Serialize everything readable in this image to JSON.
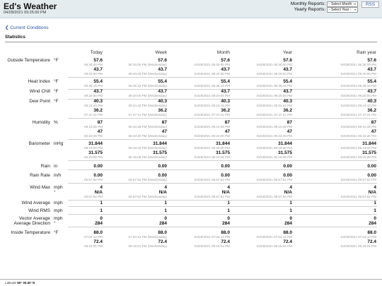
{
  "header": {
    "title": "Ed's Weather",
    "datetime": "04/28/2021 09:25:00 PM",
    "monthly_label": "Monthly Reports:",
    "monthly_select": "- Select Month -",
    "yearly_label": "Yearly Reports:",
    "yearly_select": "- Select Year -",
    "rss": "RSS"
  },
  "nav": {
    "current_conditions": "❮ Current Conditions"
  },
  "stats": {
    "heading": "Statistics",
    "columns": [
      "Today",
      "Week",
      "Month",
      "Year",
      "Rain year"
    ]
  },
  "rows": [
    {
      "label": "Outside Temperature",
      "unit": "°F",
      "lines": [
        {
          "type": "v",
          "values": [
            "57.6",
            "57.6",
            "57.6",
            "57.6",
            "57.6"
          ]
        },
        {
          "type": "t",
          "values": [
            "06:30:00 PM",
            "06:30:00 PM (Wednesday)",
            "04/28/2021 06:30:00 PM",
            "04/28/2021 06:30:00 PM",
            "04/28/2021 06:30:00 PM"
          ]
        },
        {
          "type": "v",
          "values": [
            "43.7",
            "43.7",
            "43.7",
            "43.7",
            "43.7"
          ]
        },
        {
          "type": "t",
          "values": [
            "09:20:00 PM",
            "09:20:00 PM (Wednesday)",
            "04/28/2021 09:20:00 PM",
            "04/28/2021 09:20:00 PM",
            "04/28/2021 09:20:00 PM"
          ]
        }
      ]
    },
    {
      "label": "Heat Index",
      "unit": "°F",
      "lines": [
        {
          "type": "v",
          "values": [
            "55.4",
            "55.4",
            "55.4",
            "55.4",
            "55.4"
          ]
        },
        {
          "type": "t",
          "values": [
            "06:35:16 PM",
            "06:35:16 PM (Wednesday)",
            "04/28/2021 06:35:16 PM",
            "04/28/2021 06:35:16 PM",
            "04/28/2021 06:35:16 PM"
          ]
        }
      ]
    },
    {
      "label": "Wind Chill",
      "unit": "°F",
      "lines": [
        {
          "type": "v",
          "values": [
            "43.7",
            "43.7",
            "43.7",
            "43.7",
            "43.7"
          ]
        },
        {
          "type": "t",
          "values": [
            "09:20:00 PM",
            "09:20:00 PM (Wednesday)",
            "04/28/2021 09:20:00 PM",
            "04/28/2021 09:20:00 PM",
            "04/28/2021 09:20:00 PM"
          ]
        }
      ]
    },
    {
      "label": "Dew Point",
      "unit": "°F",
      "lines": [
        {
          "type": "v",
          "values": [
            "40.3",
            "40.3",
            "40.3",
            "40.3",
            "40.3"
          ]
        },
        {
          "type": "t",
          "values": [
            "09:24:43 PM",
            "09:24:43 PM (Wednesday)",
            "04/28/2021 09:24:43 PM",
            "04/28/2021 09:24:43 PM",
            "04/28/2021 09:24:43 PM"
          ]
        },
        {
          "type": "v",
          "values": [
            "36.2",
            "36.2",
            "36.2",
            "36.2",
            "36.2"
          ]
        },
        {
          "type": "t",
          "values": [
            "07:47:21 PM",
            "07:47:21 PM (Wednesday)",
            "04/28/2021 07:47:21 PM",
            "04/28/2021 07:47:21 PM",
            "04/28/2021 07:47:21 PM"
          ]
        }
      ]
    },
    {
      "label": "Humidity",
      "unit": "%",
      "lines": [
        {
          "type": "v",
          "values": [
            "87",
            "87",
            "87",
            "87",
            "87"
          ]
        },
        {
          "type": "t",
          "values": [
            "09:10:28 PM",
            "09:10:28 PM (Wednesday)",
            "04/28/2021 09:10:28 PM",
            "04/28/2021 09:10:28 PM",
            "04/28/2021 09:10:28 PM"
          ]
        },
        {
          "type": "v",
          "values": [
            "47",
            "47",
            "47",
            "47",
            "47"
          ]
        },
        {
          "type": "t",
          "values": [
            "06:23:30 PM",
            "06:23:30 PM (Wednesday)",
            "04/28/2021 06:23:30 PM",
            "04/28/2021 06:23:30 PM",
            "04/28/2021 06:23:30 PM"
          ]
        }
      ]
    },
    {
      "label": "Barometer",
      "unit": "inHg",
      "lines": [
        {
          "type": "v",
          "values": [
            "31.844",
            "31.844",
            "31.844",
            "31.844",
            "31.844"
          ]
        },
        {
          "type": "t",
          "values": [
            "09:18:00 PM",
            "09:18:00 PM (Wednesday)",
            "04/28/2021 09:18:00 PM",
            "04/28/2021 09:18:00 PM",
            "04/28/2021 09:18:00 PM"
          ]
        },
        {
          "type": "v",
          "values": [
            "31.575",
            "31.575",
            "31.575",
            "31.575",
            "31.575"
          ]
        },
        {
          "type": "t",
          "values": [
            "06:15:08 PM",
            "06:15:08 PM (Wednesday)",
            "04/28/2021 06:15:08 PM",
            "04/28/2021 06:15:08 PM",
            "04/28/2021 06:15:08 PM"
          ]
        }
      ]
    },
    {
      "label": "Rain",
      "unit": "in",
      "lines": [
        {
          "type": "v",
          "values": [
            "0.00",
            "0.00",
            "0.00",
            "0.00",
            "0.00"
          ]
        }
      ]
    },
    {
      "label": "Rain Rate",
      "unit": "in/h",
      "lines": [
        {
          "type": "v",
          "values": [
            "0.00",
            "0.00",
            "0.00",
            "0.00",
            "0.00"
          ]
        },
        {
          "type": "t",
          "values": [
            "05:57:52 PM",
            "05:57:52 PM (Wednesday)",
            "04/28/2021 05:57:52 PM",
            "04/28/2021 05:57:52 PM",
            "04/28/2021 05:57:52 PM"
          ]
        }
      ]
    },
    {
      "label": "Wind Max",
      "unit": "mph",
      "unit2": "°",
      "lines": [
        {
          "type": "v",
          "values": [
            "4",
            "4",
            "4",
            "4",
            "4"
          ]
        },
        {
          "type": "v",
          "values": [
            "N/A",
            "N/A",
            "N/A",
            "N/A",
            "N/A"
          ]
        },
        {
          "type": "t",
          "values": [
            "05:57:52 PM",
            "05:57:52 PM (Wednesday)",
            "04/28/2021 05:57:52 PM",
            "04/28/2021 05:57:52 PM",
            "04/28/2021 05:57:52 PM"
          ]
        }
      ]
    },
    {
      "label": "Wind Average",
      "unit": "mph",
      "lines": [
        {
          "type": "v",
          "values": [
            "1",
            "1",
            "1",
            "1",
            "1"
          ]
        }
      ]
    },
    {
      "label": "Wind RMS",
      "unit": "mph",
      "lines": [
        {
          "type": "v",
          "values": [
            "1",
            "1",
            "1",
            "1",
            "1"
          ]
        }
      ]
    },
    {
      "label": "Vector Average",
      "label2": "Average Direction",
      "unit": "mph",
      "unit2": "°",
      "lines": [
        {
          "type": "v",
          "values": [
            "0",
            "0",
            "0",
            "0",
            "0"
          ]
        },
        {
          "type": "v",
          "values": [
            "284",
            "284",
            "284",
            "284",
            "284"
          ]
        }
      ]
    },
    {
      "label": "Inside Temperature",
      "unit": "°F",
      "lines": [
        {
          "type": "v",
          "values": [
            "88.0",
            "88.0",
            "88.0",
            "88.0",
            "88.0"
          ]
        },
        {
          "type": "t",
          "values": [
            "07:04:13 PM",
            "07:04:13 PM (Wednesday)",
            "04/28/2021 07:04:13 PM",
            "04/28/2021 07:04:13 PM",
            "04/28/2021 07:04:13 PM"
          ]
        },
        {
          "type": "v",
          "values": [
            "72.4",
            "72.4",
            "72.4",
            "72.4",
            "72.4"
          ]
        },
        {
          "type": "t",
          "values": [
            "09:19:01 PM",
            "09:19:01 PM (Wednesday)",
            "04/28/2021 09:19:01 PM",
            "04/28/2021 09:19:01 PM",
            "04/28/2021 09:19:01 PM"
          ]
        }
      ]
    }
  ],
  "footer": {
    "latitude_label": "Latitude",
    "latitude_value": "90° 00.00' N"
  }
}
